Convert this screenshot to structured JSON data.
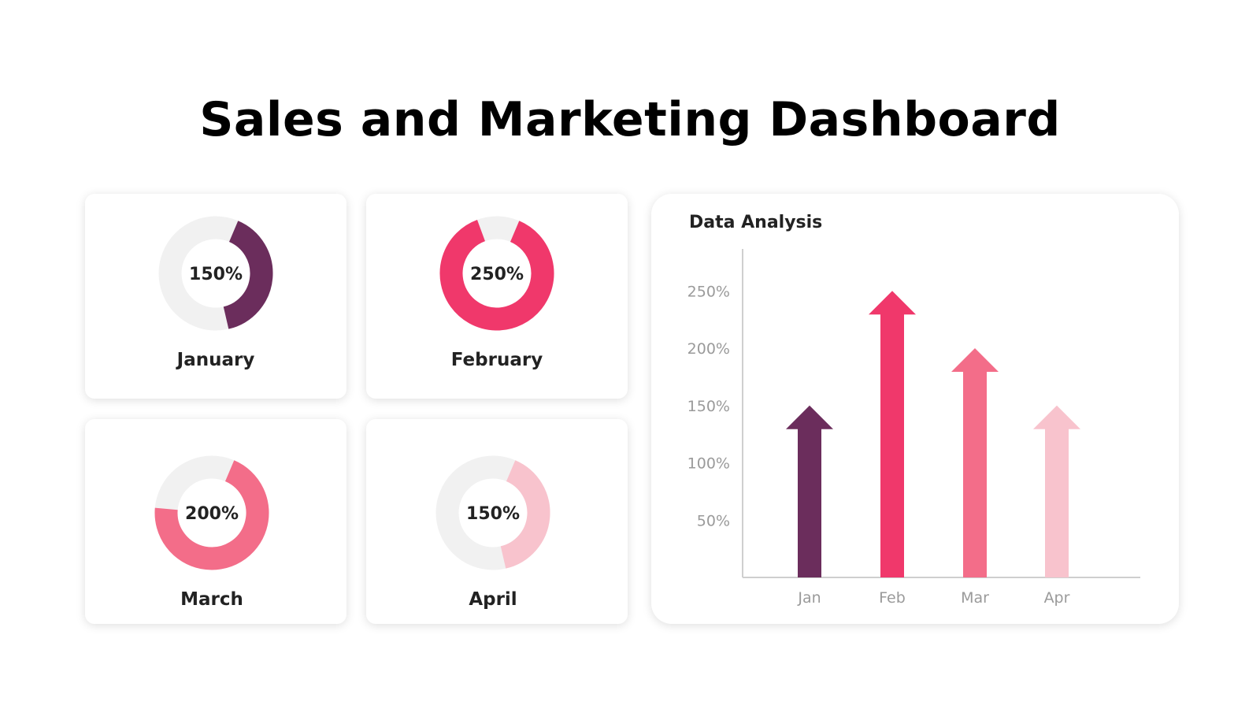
{
  "header": {
    "title": "Sales and Marketing Dashboard"
  },
  "colors": {
    "track": "#f1f1f1",
    "january": "#6b2d5c",
    "february": "#f0386b",
    "march": "#f36d89",
    "april": "#f8c3cd",
    "axis": "#cfcfcf"
  },
  "donuts": [
    {
      "label": "January",
      "value_text": "150%",
      "fraction": 0.4,
      "start_deg": 23,
      "color": "#6b2d5c"
    },
    {
      "label": "February",
      "value_text": "250%",
      "fraction": 0.88,
      "start_deg": 23,
      "color": "#f0386b"
    },
    {
      "label": "March",
      "value_text": "200%",
      "fraction": 0.7,
      "start_deg": 23,
      "color": "#f36d89"
    },
    {
      "label": "April",
      "value_text": "150%",
      "fraction": 0.4,
      "start_deg": 23,
      "color": "#f8c3cd"
    }
  ],
  "chart_data": {
    "type": "bar",
    "title": "Data Analysis",
    "categories": [
      "Jan",
      "Feb",
      "Mar",
      "Apr"
    ],
    "values": [
      150,
      250,
      200,
      150
    ],
    "colors": [
      "#6b2d5c",
      "#f0386b",
      "#f36d89",
      "#f8c3cd"
    ],
    "yticks": [
      50,
      100,
      150,
      200,
      250
    ],
    "ytick_labels": [
      "50%",
      "100%",
      "150%",
      "200%",
      "250%"
    ],
    "ylim": [
      0,
      290
    ],
    "xlabel": "",
    "ylabel": "",
    "grid": false,
    "legend": "none",
    "bar_style": "arrow"
  }
}
